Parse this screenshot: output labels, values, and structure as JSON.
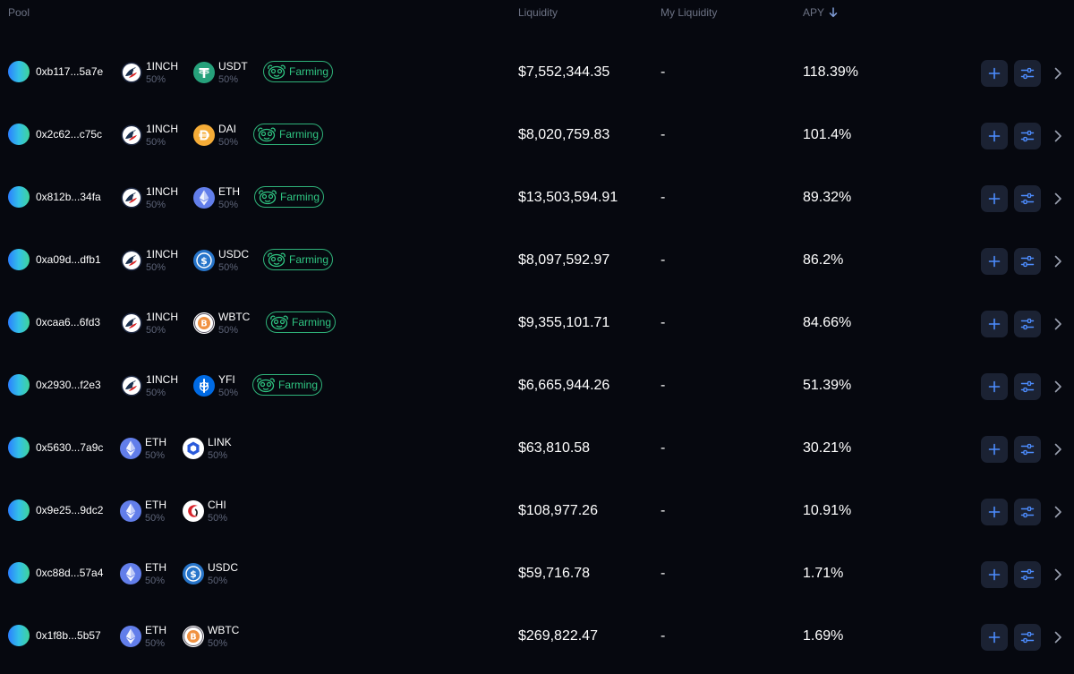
{
  "header": {
    "pool": "Pool",
    "liquidity": "Liquidity",
    "my_liquidity": "My Liquidity",
    "apy": "APY"
  },
  "farming_label": "Farming",
  "colors": {
    "background": "#06080f",
    "accent": "#2f7ff0",
    "farming_green": "#2fc582",
    "muted": "#6c7284"
  },
  "rows": [
    {
      "address": "0xb117...5a7e",
      "token0": {
        "symbol": "1INCH",
        "pct": "50%",
        "icon": "1inch-icon"
      },
      "token1": {
        "symbol": "USDT",
        "pct": "50%",
        "icon": "usdt-icon"
      },
      "farming": true,
      "liquidity": "$7,552,344.35",
      "my_liquidity": "-",
      "apy": "118.39%"
    },
    {
      "address": "0x2c62...c75c",
      "token0": {
        "symbol": "1INCH",
        "pct": "50%",
        "icon": "1inch-icon"
      },
      "token1": {
        "symbol": "DAI",
        "pct": "50%",
        "icon": "dai-icon"
      },
      "farming": true,
      "liquidity": "$8,020,759.83",
      "my_liquidity": "-",
      "apy": "101.4%"
    },
    {
      "address": "0x812b...34fa",
      "token0": {
        "symbol": "1INCH",
        "pct": "50%",
        "icon": "1inch-icon"
      },
      "token1": {
        "symbol": "ETH",
        "pct": "50%",
        "icon": "eth-icon"
      },
      "farming": true,
      "liquidity": "$13,503,594.91",
      "my_liquidity": "-",
      "apy": "89.32%"
    },
    {
      "address": "0xa09d...dfb1",
      "token0": {
        "symbol": "1INCH",
        "pct": "50%",
        "icon": "1inch-icon"
      },
      "token1": {
        "symbol": "USDC",
        "pct": "50%",
        "icon": "usdc-icon"
      },
      "farming": true,
      "liquidity": "$8,097,592.97",
      "my_liquidity": "-",
      "apy": "86.2%"
    },
    {
      "address": "0xcaa6...6fd3",
      "token0": {
        "symbol": "1INCH",
        "pct": "50%",
        "icon": "1inch-icon"
      },
      "token1": {
        "symbol": "WBTC",
        "pct": "50%",
        "icon": "wbtc-icon"
      },
      "farming": true,
      "liquidity": "$9,355,101.71",
      "my_liquidity": "-",
      "apy": "84.66%"
    },
    {
      "address": "0x2930...f2e3",
      "token0": {
        "symbol": "1INCH",
        "pct": "50%",
        "icon": "1inch-icon"
      },
      "token1": {
        "symbol": "YFI",
        "pct": "50%",
        "icon": "yfi-icon"
      },
      "farming": true,
      "liquidity": "$6,665,944.26",
      "my_liquidity": "-",
      "apy": "51.39%"
    },
    {
      "address": "0x5630...7a9c",
      "token0": {
        "symbol": "ETH",
        "pct": "50%",
        "icon": "eth-icon"
      },
      "token1": {
        "symbol": "LINK",
        "pct": "50%",
        "icon": "link-icon"
      },
      "farming": false,
      "liquidity": "$63,810.58",
      "my_liquidity": "-",
      "apy": "30.21%"
    },
    {
      "address": "0x9e25...9dc2",
      "token0": {
        "symbol": "ETH",
        "pct": "50%",
        "icon": "eth-icon"
      },
      "token1": {
        "symbol": "CHI",
        "pct": "50%",
        "icon": "chi-icon"
      },
      "farming": false,
      "liquidity": "$108,977.26",
      "my_liquidity": "-",
      "apy": "10.91%"
    },
    {
      "address": "0xc88d...57a4",
      "token0": {
        "symbol": "ETH",
        "pct": "50%",
        "icon": "eth-icon"
      },
      "token1": {
        "symbol": "USDC",
        "pct": "50%",
        "icon": "usdc-icon"
      },
      "farming": false,
      "liquidity": "$59,716.78",
      "my_liquidity": "-",
      "apy": "1.71%"
    },
    {
      "address": "0x1f8b...5b57",
      "token0": {
        "symbol": "ETH",
        "pct": "50%",
        "icon": "eth-icon"
      },
      "token1": {
        "symbol": "WBTC",
        "pct": "50%",
        "icon": "wbtc-icon"
      },
      "farming": false,
      "liquidity": "$269,822.47",
      "my_liquidity": "-",
      "apy": "1.69%"
    }
  ]
}
